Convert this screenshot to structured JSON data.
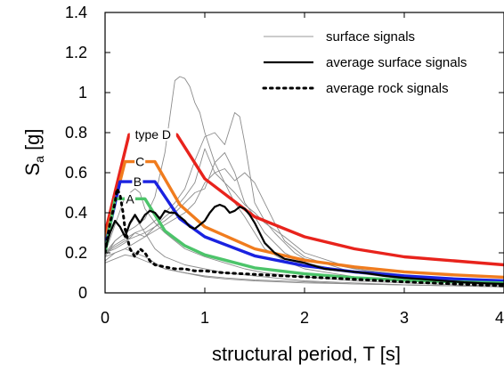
{
  "chart_data": {
    "type": "line",
    "xlabel": "structural period, T [s]",
    "ylabel_main": "S",
    "ylabel_sub": "a",
    "ylabel_unit": " [g]",
    "xlim": [
      0,
      4
    ],
    "ylim": [
      0,
      1.4
    ],
    "xticks": [
      0,
      1,
      2,
      3,
      4
    ],
    "yticks": [
      0,
      0.2,
      0.4,
      0.6,
      0.8,
      1,
      1.2,
      1.4
    ],
    "ytick_labels": [
      "0",
      "0.2",
      "0.4",
      "0.6",
      "0.8",
      "1",
      "1.2",
      "1.4"
    ],
    "grid": false,
    "legend_position": "top-right",
    "legend": [
      {
        "label": "surface signals",
        "style": "thin",
        "color": "#9a9a9a"
      },
      {
        "label": "average surface signals",
        "style": "thick",
        "color": "#000000"
      },
      {
        "label": "average rock signals",
        "style": "dotted",
        "color": "#000000"
      }
    ],
    "series": [
      {
        "name": "type D",
        "role": "code",
        "color": "#e8231c",
        "x": [
          0,
          0.24,
          0.72,
          1,
          1.5,
          2,
          2.5,
          3,
          3.5,
          4
        ],
        "y": [
          0.3,
          0.79,
          0.79,
          0.57,
          0.38,
          0.28,
          0.22,
          0.18,
          0.16,
          0.14
        ]
      },
      {
        "name": "C",
        "role": "code",
        "color": "#f07c1e",
        "x": [
          0,
          0.2,
          0.5,
          0.75,
          1,
          1.5,
          2,
          2.5,
          3,
          3.5,
          4
        ],
        "y": [
          0.26,
          0.655,
          0.655,
          0.44,
          0.33,
          0.22,
          0.163,
          0.13,
          0.105,
          0.09,
          0.078
        ]
      },
      {
        "name": "B",
        "role": "code",
        "color": "#1a22e0",
        "x": [
          0,
          0.15,
          0.5,
          0.75,
          1,
          1.5,
          2,
          2.5,
          3,
          3.5,
          4
        ],
        "y": [
          0.23,
          0.555,
          0.555,
          0.37,
          0.28,
          0.185,
          0.135,
          0.105,
          0.085,
          0.07,
          0.06
        ]
      },
      {
        "name": "A",
        "role": "code",
        "color": "#4cc46a",
        "x": [
          0,
          0.1,
          0.4,
          0.6,
          0.8,
          1,
          1.5,
          2,
          2.5,
          3,
          3.5,
          4
        ],
        "y": [
          0.2,
          0.47,
          0.47,
          0.31,
          0.235,
          0.19,
          0.125,
          0.095,
          0.076,
          0.063,
          0.055,
          0.05
        ]
      },
      {
        "role": "avg_surface",
        "color": "#000000",
        "x": [
          0,
          0.05,
          0.1,
          0.15,
          0.2,
          0.25,
          0.3,
          0.35,
          0.4,
          0.45,
          0.5,
          0.55,
          0.6,
          0.65,
          0.7,
          0.75,
          0.8,
          0.85,
          0.9,
          0.95,
          1.0,
          1.05,
          1.1,
          1.15,
          1.2,
          1.25,
          1.3,
          1.35,
          1.4,
          1.45,
          1.5,
          1.55,
          1.6,
          1.7,
          1.8,
          1.9,
          2.0,
          2.2,
          2.4,
          2.6,
          2.8,
          3.0,
          3.2,
          3.4,
          3.6,
          3.8,
          4.0
        ],
        "y": [
          0.22,
          0.3,
          0.36,
          0.33,
          0.28,
          0.35,
          0.39,
          0.35,
          0.39,
          0.41,
          0.4,
          0.37,
          0.41,
          0.4,
          0.4,
          0.38,
          0.36,
          0.33,
          0.32,
          0.34,
          0.36,
          0.4,
          0.43,
          0.44,
          0.43,
          0.4,
          0.41,
          0.43,
          0.42,
          0.39,
          0.35,
          0.3,
          0.25,
          0.2,
          0.17,
          0.16,
          0.15,
          0.12,
          0.11,
          0.1,
          0.085,
          0.075,
          0.068,
          0.06,
          0.053,
          0.048,
          0.045
        ]
      },
      {
        "role": "avg_rock",
        "color": "#000000",
        "x": [
          0,
          0.05,
          0.1,
          0.12,
          0.15,
          0.18,
          0.2,
          0.25,
          0.3,
          0.35,
          0.4,
          0.45,
          0.5,
          0.6,
          0.7,
          0.8,
          0.9,
          1.0,
          1.2,
          1.4,
          1.6,
          1.8,
          2.0,
          2.5,
          3.0,
          3.5,
          4.0
        ],
        "y": [
          0.2,
          0.35,
          0.45,
          0.52,
          0.49,
          0.4,
          0.32,
          0.22,
          0.18,
          0.22,
          0.2,
          0.16,
          0.14,
          0.13,
          0.12,
          0.12,
          0.11,
          0.11,
          0.1,
          0.095,
          0.09,
          0.085,
          0.08,
          0.068,
          0.055,
          0.045,
          0.035
        ]
      },
      {
        "role": "surface",
        "color": "#8c8c8c",
        "x": [
          0,
          0.1,
          0.2,
          0.3,
          0.4,
          0.5,
          0.6,
          0.65,
          0.7,
          0.75,
          0.8,
          0.85,
          0.9,
          0.95,
          1.0,
          1.1,
          1.2,
          1.3,
          1.4,
          1.5,
          1.6,
          1.8,
          2.0,
          2.5,
          3.0,
          3.5,
          4.0
        ],
        "y": [
          0.2,
          0.26,
          0.3,
          0.33,
          0.37,
          0.48,
          0.7,
          0.88,
          1.06,
          1.08,
          1.07,
          1.03,
          0.95,
          0.9,
          0.8,
          0.65,
          0.55,
          0.45,
          0.38,
          0.3,
          0.22,
          0.16,
          0.12,
          0.08,
          0.06,
          0.05,
          0.04
        ]
      },
      {
        "role": "surface",
        "color": "#8c8c8c",
        "x": [
          0,
          0.1,
          0.2,
          0.3,
          0.4,
          0.5,
          0.6,
          0.7,
          0.8,
          0.9,
          1.0,
          1.1,
          1.2,
          1.25,
          1.3,
          1.35,
          1.4,
          1.45,
          1.5,
          1.6,
          1.7,
          1.8,
          1.9,
          2.0,
          2.5,
          3.0,
          3.5,
          4.0
        ],
        "y": [
          0.2,
          0.24,
          0.27,
          0.3,
          0.32,
          0.36,
          0.4,
          0.45,
          0.52,
          0.66,
          0.78,
          0.8,
          0.74,
          0.82,
          0.9,
          0.88,
          0.75,
          0.6,
          0.45,
          0.36,
          0.3,
          0.25,
          0.2,
          0.17,
          0.12,
          0.09,
          0.07,
          0.06
        ]
      },
      {
        "role": "surface",
        "color": "#8c8c8c",
        "x": [
          0,
          0.1,
          0.2,
          0.3,
          0.4,
          0.5,
          0.6,
          0.7,
          0.8,
          0.9,
          1.0,
          1.1,
          1.2,
          1.3,
          1.4,
          1.5,
          1.6,
          1.7,
          1.8,
          2.0,
          2.5,
          3.0,
          3.5,
          4.0
        ],
        "y": [
          0.2,
          0.23,
          0.26,
          0.28,
          0.3,
          0.33,
          0.36,
          0.4,
          0.45,
          0.5,
          0.52,
          0.65,
          0.7,
          0.6,
          0.45,
          0.38,
          0.3,
          0.25,
          0.2,
          0.15,
          0.1,
          0.08,
          0.06,
          0.05
        ]
      },
      {
        "role": "surface",
        "color": "#8c8c8c",
        "x": [
          0,
          0.1,
          0.2,
          0.3,
          0.4,
          0.5,
          0.6,
          0.7,
          0.8,
          0.9,
          1.0,
          1.1,
          1.2,
          1.3,
          1.4,
          1.5,
          1.6,
          1.8,
          2.0,
          2.5,
          3.0,
          3.5,
          4.0
        ],
        "y": [
          0.2,
          0.22,
          0.25,
          0.3,
          0.28,
          0.33,
          0.38,
          0.42,
          0.48,
          0.55,
          0.72,
          0.6,
          0.55,
          0.5,
          0.44,
          0.4,
          0.35,
          0.28,
          0.2,
          0.12,
          0.08,
          0.06,
          0.05
        ]
      },
      {
        "role": "surface",
        "color": "#8c8c8c",
        "x": [
          0,
          0.1,
          0.2,
          0.3,
          0.4,
          0.5,
          0.6,
          0.7,
          0.8,
          0.9,
          1.0,
          1.1,
          1.2,
          1.3,
          1.4,
          1.5,
          1.6,
          1.7,
          1.8,
          2.0,
          2.5,
          3.0,
          3.5,
          4.0
        ],
        "y": [
          0.18,
          0.2,
          0.22,
          0.25,
          0.28,
          0.31,
          0.34,
          0.37,
          0.4,
          0.45,
          0.55,
          0.6,
          0.62,
          0.56,
          0.6,
          0.55,
          0.45,
          0.35,
          0.26,
          0.18,
          0.1,
          0.07,
          0.05,
          0.04
        ]
      },
      {
        "role": "surface",
        "color": "#8c8c8c",
        "x": [
          0,
          0.1,
          0.2,
          0.3,
          0.35,
          0.4,
          0.5,
          0.6,
          0.7,
          0.8,
          1.0,
          1.2,
          1.4,
          1.6,
          1.8,
          2.0,
          2.5,
          3.0,
          3.5,
          4.0
        ],
        "y": [
          0.2,
          0.34,
          0.48,
          0.52,
          0.5,
          0.42,
          0.35,
          0.3,
          0.26,
          0.22,
          0.18,
          0.15,
          0.12,
          0.1,
          0.09,
          0.08,
          0.06,
          0.05,
          0.04,
          0.035
        ]
      },
      {
        "role": "surface",
        "color": "#8c8c8c",
        "x": [
          0,
          0.1,
          0.2,
          0.3,
          0.4,
          0.5,
          0.6,
          0.8,
          1.0,
          1.2,
          1.4,
          1.6,
          1.8,
          2.0,
          2.5,
          3.0,
          3.5,
          4.0
        ],
        "y": [
          0.18,
          0.26,
          0.3,
          0.38,
          0.3,
          0.22,
          0.18,
          0.14,
          0.12,
          0.1,
          0.09,
          0.08,
          0.07,
          0.06,
          0.05,
          0.04,
          0.035,
          0.03
        ]
      },
      {
        "role": "surface",
        "color": "#8c8c8c",
        "x": [
          0,
          0.1,
          0.2,
          0.3,
          0.4,
          0.5,
          0.6,
          0.8,
          1.0,
          1.2,
          1.5,
          2.0,
          2.5,
          3.0,
          3.5,
          4.0
        ],
        "y": [
          0.16,
          0.2,
          0.22,
          0.2,
          0.18,
          0.15,
          0.12,
          0.1,
          0.08,
          0.07,
          0.06,
          0.05,
          0.045,
          0.04,
          0.035,
          0.03
        ]
      },
      {
        "role": "surface",
        "color": "#8c8c8c",
        "x": [
          0,
          0.1,
          0.2,
          0.3,
          0.4,
          0.5,
          0.6,
          0.8,
          1.0,
          1.2,
          1.5,
          2.0,
          2.5,
          3.0,
          3.5,
          4.0
        ],
        "y": [
          0.15,
          0.17,
          0.19,
          0.18,
          0.16,
          0.14,
          0.12,
          0.1,
          0.085,
          0.075,
          0.065,
          0.055,
          0.045,
          0.04,
          0.035,
          0.03
        ]
      }
    ]
  }
}
